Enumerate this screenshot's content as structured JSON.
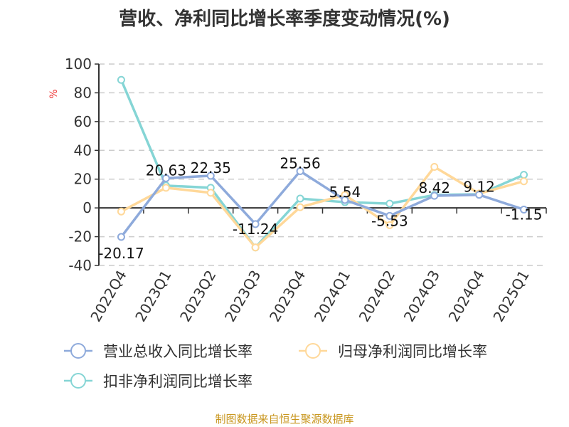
{
  "chart_data": {
    "type": "line",
    "title": "营收、净利同比增长率季度变动情况(%)",
    "ylabel": "%",
    "ylim": [
      -40,
      100
    ],
    "yticks": [
      100,
      80,
      60,
      40,
      20,
      0,
      -20,
      -40
    ],
    "grid": true,
    "legend_position": "bottom",
    "categories": [
      "2022Q4",
      "2023Q1",
      "2023Q2",
      "2023Q3",
      "2023Q4",
      "2024Q1",
      "2024Q2",
      "2024Q3",
      "2024Q4",
      "2025Q1"
    ],
    "series": [
      {
        "name": "营业总收入同比增长率",
        "color": "#8eaadb",
        "values": [
          -20.17,
          20.63,
          22.35,
          -11.24,
          25.56,
          5.54,
          -5.53,
          8.42,
          9.12,
          -1.15
        ],
        "show_labels": true
      },
      {
        "name": "归母净利润同比增长率",
        "color": "#ffd899",
        "values": [
          -2.5,
          14,
          10.5,
          -27.5,
          0.5,
          9,
          -12,
          28.5,
          10,
          18.5
        ],
        "show_labels": false
      },
      {
        "name": "扣非净利润同比增长率",
        "color": "#85d5d5",
        "values": [
          89,
          15.5,
          14,
          -27.5,
          6.5,
          4,
          3,
          9,
          9.5,
          23
        ],
        "show_labels": false
      }
    ]
  },
  "source": "制图数据来自恒生聚源数据库"
}
